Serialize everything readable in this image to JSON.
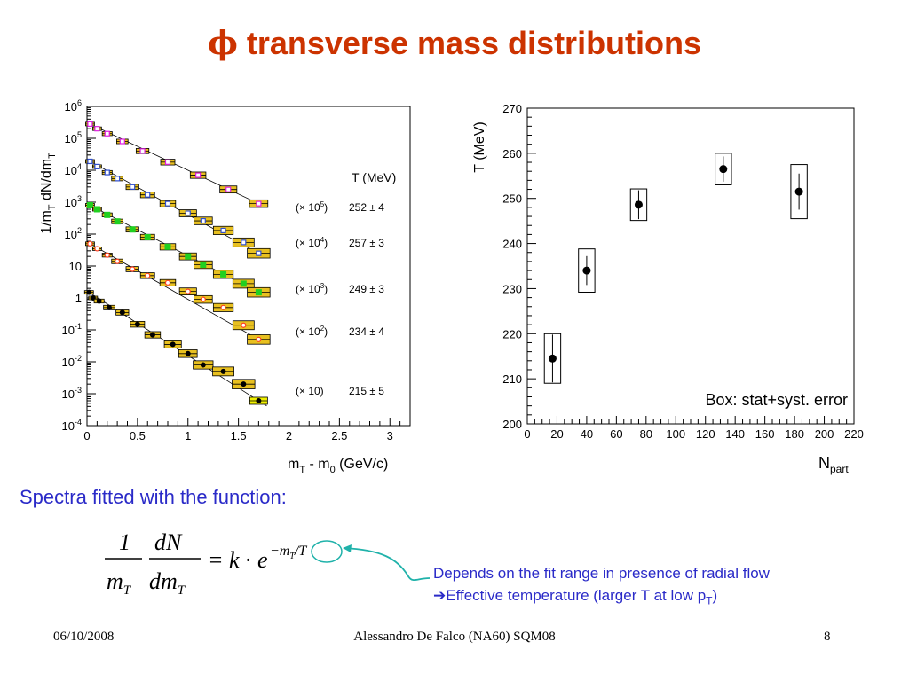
{
  "slide": {
    "title_symbol": "ϕ",
    "title_text": " transverse mass distributions",
    "caption": "Spectra fitted with the function:",
    "note_line1": "Depends on the fit range in presence of radial flow",
    "note_line2": "Effective temperature (larger T at low p",
    "note_line2_sub": "T",
    "note_line2_end": ")",
    "note_arrow": "➔",
    "footer_date": "06/10/2008",
    "footer_author": "Alessandro De Falco (NA60) SQM08",
    "footer_page": "8",
    "formula": {
      "one": "1",
      "dN": "dN",
      "mT_m": "m",
      "mT_T": "T",
      "dmT_d": "dm",
      "dmT_T": "T",
      "equals": "=",
      "k": "k",
      "dot": "·",
      "e": "e",
      "exponent": "−m",
      "exp_sub": "T",
      "exp_over": "/T"
    },
    "colors": {
      "title": "#cc3300",
      "text_blue": "#2a2ac8",
      "arrow_teal": "#20b2aa"
    }
  },
  "chart_data": [
    {
      "type": "scatter",
      "yscale": "log",
      "xlabel_main": "m",
      "xlabel_sub": "T",
      "xlabel_mid": " - m",
      "xlabel_sub2": "0",
      "xlabel_end": " (GeV/c)",
      "ylabel_text": "1/m",
      "ylabel_sub": "T",
      "ylabel_mid": " dN/dm",
      "ylabel_sub2": "T",
      "xlim": [
        0,
        3.2
      ],
      "ylim": [
        0.0001,
        1000000
      ],
      "xticks": [
        "0",
        "0.5",
        "1",
        "1.5",
        "2",
        "2.5",
        "3"
      ],
      "xtick_values": [
        0,
        0.5,
        1,
        1.5,
        2,
        2.5,
        3
      ],
      "yticks": [
        {
          "base": "10",
          "exp": "6",
          "value": 1000000
        },
        {
          "base": "10",
          "exp": "5",
          "value": 100000
        },
        {
          "base": "10",
          "exp": "4",
          "value": 10000
        },
        {
          "base": "10",
          "exp": "3",
          "value": 1000
        },
        {
          "base": "10",
          "exp": "2",
          "value": 100
        },
        {
          "base": "10",
          "exp": "",
          "value": 10
        },
        {
          "base": "1",
          "exp": "",
          "value": 1
        },
        {
          "base": "10",
          "exp": "-1",
          "value": 0.1
        },
        {
          "base": "10",
          "exp": "-2",
          "value": 0.01
        },
        {
          "base": "10",
          "exp": "-3",
          "value": 0.001
        },
        {
          "base": "10",
          "exp": "-4",
          "value": 0.0001
        }
      ],
      "legend_header": "T (MeV)",
      "series": [
        {
          "scale_label": "(× 10",
          "scale_exp": "5",
          "scale_close": ")",
          "T_label": "252 ± 4",
          "color": "#e020e0",
          "marker": "open-square",
          "x": [
            0.03,
            0.1,
            0.2,
            0.35,
            0.55,
            0.8,
            1.1,
            1.4,
            1.7
          ],
          "y": [
            280000,
            200000,
            140000,
            80000,
            40000,
            18000,
            7000,
            2500,
            900
          ]
        },
        {
          "scale_label": "(× 10",
          "scale_exp": "4",
          "scale_close": ")",
          "T_label": "257 ± 3",
          "color": "#3050d0",
          "marker": "open-square",
          "x": [
            0.03,
            0.1,
            0.2,
            0.3,
            0.45,
            0.6,
            0.8,
            1.0,
            1.15,
            1.35,
            1.55,
            1.7
          ],
          "y": [
            19000,
            13000,
            8500,
            5500,
            3000,
            1700,
            900,
            450,
            260,
            130,
            55,
            25
          ]
        },
        {
          "scale_label": "(× 10",
          "scale_exp": "3",
          "scale_close": ")",
          "T_label": "249 ± 3",
          "color": "#20d020",
          "marker": "filled-square",
          "x": [
            0.03,
            0.1,
            0.2,
            0.3,
            0.45,
            0.6,
            0.8,
            1.0,
            1.15,
            1.35,
            1.55,
            1.7
          ],
          "y": [
            800,
            600,
            400,
            250,
            140,
            80,
            40,
            20,
            11,
            5.5,
            2.8,
            1.5
          ]
        },
        {
          "scale_label": "(× 10",
          "scale_exp": "2",
          "scale_close": ")",
          "T_label": "234 ± 4",
          "color": "#ff4020",
          "marker": "open-circle",
          "x": [
            0.03,
            0.1,
            0.2,
            0.3,
            0.45,
            0.6,
            0.8,
            1.0,
            1.15,
            1.35,
            1.55,
            1.7
          ],
          "y": [
            50,
            35,
            22,
            14,
            8,
            5,
            3,
            1.6,
            0.9,
            0.5,
            0.14,
            0.05
          ]
        },
        {
          "scale_label": "(× 10)",
          "scale_exp": "",
          "scale_close": "",
          "T_label": "215 ± 5",
          "color": "#000000",
          "marker": "filled-circle",
          "x": [
            0.02,
            0.06,
            0.12,
            0.22,
            0.35,
            0.5,
            0.65,
            0.85,
            1.0,
            1.15,
            1.35,
            1.55,
            1.7
          ],
          "y": [
            1.5,
            1.0,
            0.8,
            0.5,
            0.35,
            0.15,
            0.07,
            0.035,
            0.018,
            0.008,
            0.005,
            0.002,
            0.0006
          ]
        }
      ]
    },
    {
      "type": "scatter",
      "ylabel": "T (MeV)",
      "xlabel_main": "N",
      "xlabel_sub": "part",
      "xlim": [
        0,
        220
      ],
      "ylim": [
        200,
        270
      ],
      "xticks": [
        "0",
        "20",
        "40",
        "60",
        "80",
        "100",
        "120",
        "140",
        "160",
        "180",
        "200",
        "220"
      ],
      "xtick_values": [
        0,
        20,
        40,
        60,
        80,
        100,
        120,
        140,
        160,
        180,
        200,
        220
      ],
      "yticks": [
        "200",
        "210",
        "220",
        "230",
        "240",
        "250",
        "260",
        "270"
      ],
      "ytick_values": [
        200,
        210,
        220,
        230,
        240,
        250,
        260,
        270
      ],
      "annotation": "Box: stat+syst. error",
      "points": [
        {
          "x": 17,
          "y": 214.5,
          "stat": 5.3,
          "syst": 5.5,
          "box_halfwidth": 5.5
        },
        {
          "x": 40,
          "y": 234,
          "stat": 3.2,
          "syst": 4.8,
          "box_halfwidth": 5.5
        },
        {
          "x": 75,
          "y": 248.6,
          "stat": 3.2,
          "syst": 3.5,
          "box_halfwidth": 5.5
        },
        {
          "x": 132,
          "y": 256.5,
          "stat": 2.8,
          "syst": 3.5,
          "box_halfwidth": 5.5
        },
        {
          "x": 183,
          "y": 251.5,
          "stat": 4.0,
          "syst": 6.0,
          "box_halfwidth": 5.5
        }
      ]
    }
  ]
}
